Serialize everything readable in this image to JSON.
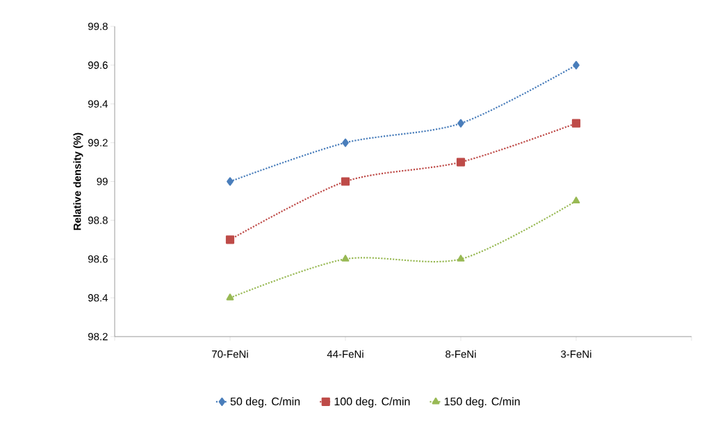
{
  "chart_data": {
    "type": "line",
    "ylabel": "Relative density (%)",
    "categories": [
      null,
      "70-FeNi",
      "44-FeNi",
      "8-FeNi",
      "3-FeNi",
      null
    ],
    "series": [
      {
        "name": "50 deg. C/min",
        "color": "#4a7ebb",
        "marker": "diamond",
        "values": [
          null,
          99.0,
          99.2,
          99.3,
          99.6,
          null
        ]
      },
      {
        "name": "100 deg. C/min",
        "color": "#be4b48",
        "marker": "square",
        "values": [
          null,
          98.7,
          99.0,
          99.1,
          99.3,
          null
        ]
      },
      {
        "name": "150 deg. C/min",
        "color": "#98b954",
        "marker": "triangle",
        "values": [
          null,
          98.4,
          98.6,
          98.6,
          98.9,
          null
        ]
      }
    ],
    "ylim": [
      98.2,
      99.8
    ],
    "yticks": [
      98.2,
      98.4,
      98.6,
      98.8,
      99,
      99.2,
      99.4,
      99.6,
      99.8
    ],
    "line_style": "dotted",
    "legend": "bottom"
  }
}
